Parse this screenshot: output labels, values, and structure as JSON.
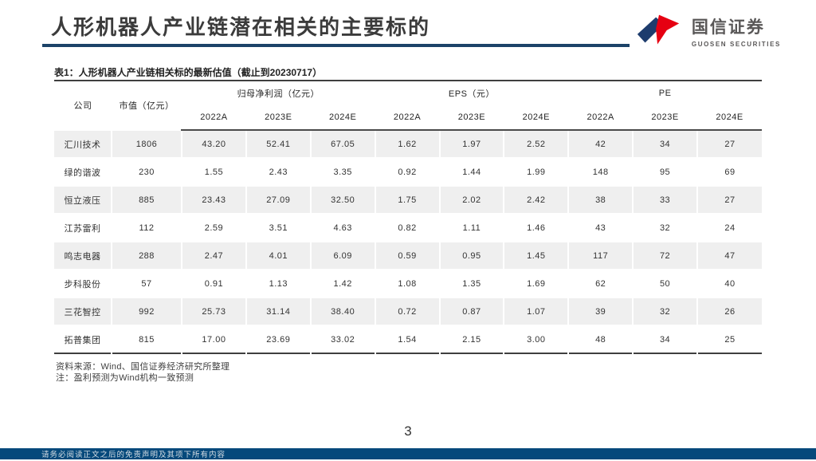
{
  "slide": {
    "title": "人形机器人产业链潜在相关的主要标的",
    "page_number": "3",
    "footer_disclaimer": "请务必阅读正文之后的免责声明及其项下所有内容"
  },
  "logo": {
    "name_cn": "国信证券",
    "name_en": "GUOSEN SECURITIES"
  },
  "table": {
    "caption": "表1：人形机器人产业链相关标的最新估值（截止到20230717）",
    "col_company": "公司",
    "col_marketcap": "市值（亿元）",
    "groups": [
      {
        "label": "归母净利润（亿元）"
      },
      {
        "label": "EPS（元）"
      },
      {
        "label": "PE"
      }
    ],
    "year_headers": [
      "2022A",
      "2023E",
      "2024E",
      "2022A",
      "2023E",
      "2024E",
      "2022A",
      "2023E",
      "2024E"
    ],
    "rows": [
      {
        "company": "汇川技术",
        "market_cap": "1806",
        "values": [
          "43.20",
          "52.41",
          "67.05",
          "1.62",
          "1.97",
          "2.52",
          "42",
          "34",
          "27"
        ]
      },
      {
        "company": "绿的谐波",
        "market_cap": "230",
        "values": [
          "1.55",
          "2.43",
          "3.35",
          "0.92",
          "1.44",
          "1.99",
          "148",
          "95",
          "69"
        ]
      },
      {
        "company": "恒立液压",
        "market_cap": "885",
        "values": [
          "23.43",
          "27.09",
          "32.50",
          "1.75",
          "2.02",
          "2.42",
          "38",
          "33",
          "27"
        ]
      },
      {
        "company": "江苏雷利",
        "market_cap": "112",
        "values": [
          "2.59",
          "3.51",
          "4.63",
          "0.82",
          "1.11",
          "1.46",
          "43",
          "32",
          "24"
        ]
      },
      {
        "company": "鸣志电器",
        "market_cap": "288",
        "values": [
          "2.47",
          "4.01",
          "6.09",
          "0.59",
          "0.95",
          "1.45",
          "117",
          "72",
          "47"
        ]
      },
      {
        "company": "步科股份",
        "market_cap": "57",
        "values": [
          "0.91",
          "1.13",
          "1.42",
          "1.08",
          "1.35",
          "1.69",
          "62",
          "50",
          "40"
        ]
      },
      {
        "company": "三花智控",
        "market_cap": "992",
        "values": [
          "25.73",
          "31.14",
          "38.40",
          "0.72",
          "0.87",
          "1.07",
          "39",
          "32",
          "26"
        ]
      },
      {
        "company": "拓普集团",
        "market_cap": "815",
        "values": [
          "17.00",
          "23.69",
          "33.02",
          "1.54",
          "2.15",
          "3.00",
          "48",
          "34",
          "25"
        ]
      }
    ],
    "source_note": "资料来源：Wind、国信证券经济研究所整理",
    "note": "注：盈利预测为Wind机构一致预测"
  },
  "colors": {
    "brand_red": "#e60012",
    "brand_navy": "#1d3c6d",
    "title_rule_navy": "#1c4368",
    "bottom_bar_navy": "#05497b",
    "row_alt_gray": "#efefef"
  }
}
